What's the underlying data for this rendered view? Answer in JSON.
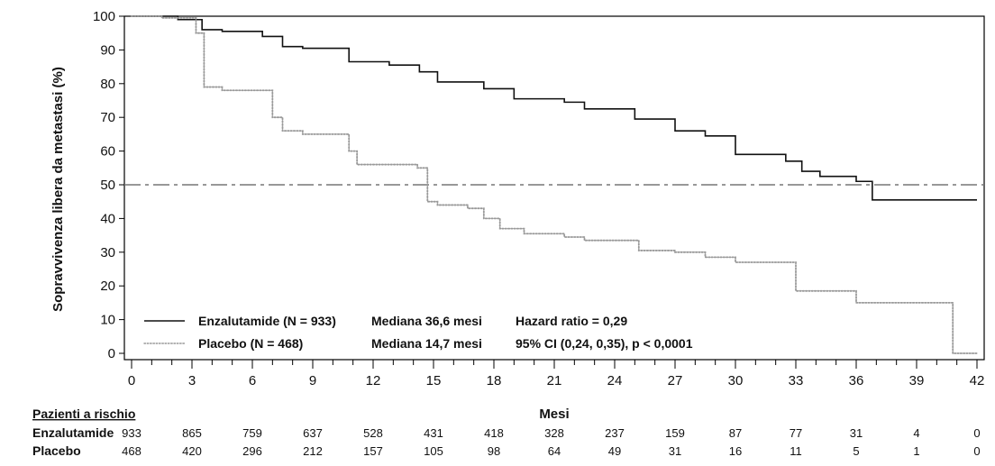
{
  "chart_data": {
    "type": "line",
    "xlabel": "Mesi",
    "ylabel": "Sopravvivenza libera da metastasi (%)",
    "xlim": [
      0,
      42
    ],
    "ylim": [
      0,
      100
    ],
    "x_ticks": [
      0,
      3,
      6,
      9,
      12,
      15,
      18,
      21,
      24,
      27,
      30,
      33,
      36,
      39,
      42
    ],
    "y_ticks": [
      0,
      10,
      20,
      30,
      40,
      50,
      60,
      70,
      80,
      90,
      100
    ],
    "reference_line": {
      "y": 50,
      "style": "dash-dot",
      "color": "#777777"
    },
    "series": [
      {
        "name": "Enzalutamide (N = 933)",
        "color": "#111111",
        "style": "solid",
        "median_text": "Mediana 36,6 mesi",
        "stat_text": "Hazard ratio = 0,29",
        "x": [
          0,
          2.3,
          3.5,
          4.5,
          6.5,
          7.5,
          8.5,
          10.8,
          12.8,
          14.3,
          15.2,
          17.5,
          19,
          21.5,
          22.5,
          25,
          27,
          28.5,
          30,
          32.5,
          33.3,
          34.2,
          36,
          36.8,
          42
        ],
        "y": [
          100,
          99,
          96,
          95.5,
          94,
          91,
          90.5,
          86.5,
          85.5,
          83.5,
          80.5,
          78.5,
          75.5,
          74.5,
          72.5,
          69.5,
          66,
          64.5,
          59,
          57,
          54,
          52.5,
          51,
          45.5,
          45.5
        ]
      },
      {
        "name": "Placebo  (N = 468)",
        "color": "#999999",
        "style": "dotted",
        "median_text": "Mediana 14,7 mesi",
        "stat_text": "95% CI (0,24, 0,35), p < 0,0001",
        "x": [
          0,
          1.5,
          3.2,
          3.6,
          4.5,
          7,
          7.5,
          8.5,
          10.8,
          11.2,
          14.2,
          14.7,
          15.2,
          16.7,
          17.5,
          18.3,
          19.5,
          21.5,
          22.5,
          25.2,
          27,
          28.5,
          30,
          33,
          36,
          40.8,
          42
        ],
        "y": [
          100,
          99.5,
          95,
          79,
          78,
          70,
          66,
          65,
          60,
          56,
          55,
          45,
          44,
          43,
          40,
          37,
          35.5,
          34.5,
          33.5,
          30.5,
          30,
          28.5,
          27,
          18.5,
          15,
          0,
          0
        ]
      }
    ],
    "risk_table": {
      "title": "Pazienti a rischio",
      "times": [
        0,
        3,
        6,
        9,
        12,
        15,
        18,
        21,
        24,
        27,
        30,
        33,
        36,
        39,
        42
      ],
      "rows": [
        {
          "label": "Enzalutamide",
          "values": [
            933,
            865,
            759,
            637,
            528,
            431,
            418,
            328,
            237,
            159,
            87,
            77,
            31,
            4,
            0
          ]
        },
        {
          "label": "Placebo",
          "values": [
            468,
            420,
            296,
            212,
            157,
            105,
            98,
            64,
            49,
            31,
            16,
            11,
            5,
            1,
            0
          ]
        }
      ]
    }
  }
}
